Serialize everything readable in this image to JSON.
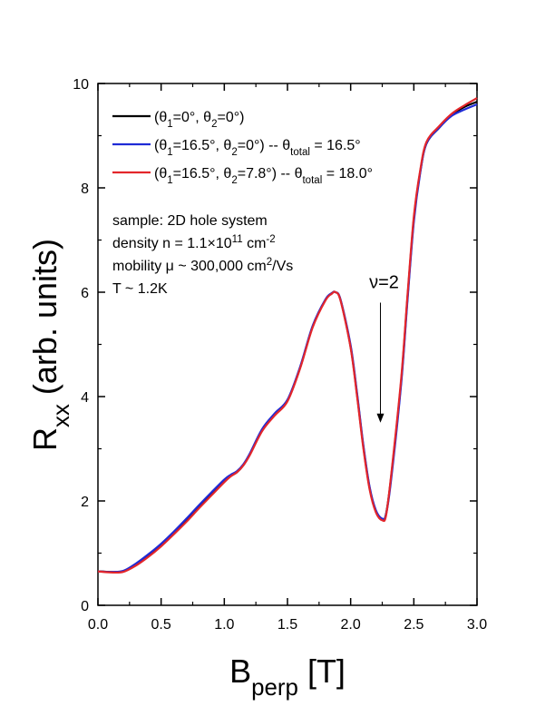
{
  "chart_data": {
    "type": "line",
    "xlabel": {
      "main": "B",
      "sub": "perp",
      "rest": " [T]"
    },
    "ylabel": {
      "main": "R",
      "sub": "xx",
      "rest": " (arb. units)"
    },
    "xlim": [
      0.0,
      3.0
    ],
    "ylim": [
      0,
      10
    ],
    "xticks": [
      "0.0",
      "0.5",
      "1.0",
      "1.5",
      "2.0",
      "2.5",
      "3.0"
    ],
    "yticks": [
      "0",
      "2",
      "4",
      "6",
      "8",
      "10"
    ],
    "grid": false,
    "legend_position": "top-left",
    "series": [
      {
        "color": "#000000",
        "label": "(θ1=0°, θ2=0°)",
        "x": [
          0.0,
          0.1,
          0.2,
          0.3,
          0.4,
          0.5,
          0.6,
          0.7,
          0.8,
          0.9,
          1.0,
          1.05,
          1.1,
          1.15,
          1.2,
          1.3,
          1.4,
          1.5,
          1.6,
          1.7,
          1.8,
          1.85,
          1.88,
          1.92,
          2.0,
          2.05,
          2.1,
          2.15,
          2.2,
          2.25,
          2.28,
          2.32,
          2.4,
          2.45,
          2.5,
          2.55,
          2.6,
          2.7,
          2.8,
          2.9,
          3.0
        ],
        "y": [
          0.65,
          0.64,
          0.65,
          0.78,
          0.95,
          1.15,
          1.38,
          1.62,
          1.88,
          2.13,
          2.38,
          2.48,
          2.55,
          2.68,
          2.88,
          3.35,
          3.65,
          3.92,
          4.55,
          5.35,
          5.85,
          5.98,
          6.0,
          5.85,
          4.95,
          4.05,
          3.05,
          2.25,
          1.8,
          1.65,
          1.75,
          2.45,
          4.3,
          5.9,
          7.4,
          8.3,
          8.85,
          9.15,
          9.4,
          9.55,
          9.65
        ]
      },
      {
        "color": "#1f2bd6",
        "label": "(θ1=16.5°, θ2=0°) -- θtotal = 16.5°",
        "x": [
          0.0,
          0.1,
          0.2,
          0.3,
          0.4,
          0.5,
          0.6,
          0.7,
          0.8,
          0.9,
          1.0,
          1.05,
          1.1,
          1.15,
          1.2,
          1.3,
          1.4,
          1.5,
          1.6,
          1.7,
          1.8,
          1.85,
          1.88,
          1.92,
          2.0,
          2.05,
          2.1,
          2.15,
          2.2,
          2.25,
          2.28,
          2.32,
          2.4,
          2.45,
          2.5,
          2.55,
          2.6,
          2.7,
          2.8,
          2.9,
          3.0
        ],
        "y": [
          0.65,
          0.64,
          0.66,
          0.8,
          0.98,
          1.18,
          1.41,
          1.66,
          1.92,
          2.17,
          2.41,
          2.5,
          2.57,
          2.7,
          2.9,
          3.38,
          3.68,
          3.94,
          4.57,
          5.36,
          5.86,
          5.98,
          6.0,
          5.86,
          4.98,
          4.08,
          3.08,
          2.27,
          1.82,
          1.66,
          1.74,
          2.4,
          4.25,
          5.85,
          7.35,
          8.28,
          8.85,
          9.15,
          9.38,
          9.5,
          9.6
        ]
      },
      {
        "color": "#e3262b",
        "label": "(θ1=16.5°, θ2=7.8°) -- θtotal = 18.0°",
        "x": [
          0.0,
          0.1,
          0.2,
          0.3,
          0.4,
          0.5,
          0.6,
          0.7,
          0.8,
          0.9,
          1.0,
          1.05,
          1.1,
          1.15,
          1.2,
          1.3,
          1.4,
          1.5,
          1.6,
          1.7,
          1.8,
          1.85,
          1.88,
          1.92,
          2.0,
          2.05,
          2.1,
          2.15,
          2.2,
          2.25,
          2.28,
          2.32,
          2.4,
          2.45,
          2.5,
          2.55,
          2.6,
          2.7,
          2.8,
          2.9,
          3.0
        ],
        "y": [
          0.65,
          0.63,
          0.64,
          0.76,
          0.93,
          1.13,
          1.36,
          1.6,
          1.86,
          2.11,
          2.36,
          2.47,
          2.55,
          2.68,
          2.87,
          3.34,
          3.64,
          3.91,
          4.54,
          5.33,
          5.84,
          5.97,
          6.0,
          5.84,
          4.93,
          4.02,
          3.02,
          2.22,
          1.78,
          1.63,
          1.72,
          2.48,
          4.35,
          5.95,
          7.45,
          8.33,
          8.88,
          9.18,
          9.42,
          9.58,
          9.72
        ]
      }
    ],
    "legend": [
      {
        "color": "#000000",
        "parts": [
          [
            "(θ",
            ""
          ],
          [
            "1",
            "sub"
          ],
          [
            "=0°, θ",
            ""
          ],
          [
            "2",
            "sub"
          ],
          [
            "=0°)",
            ""
          ]
        ]
      },
      {
        "color": "#1f2bd6",
        "parts": [
          [
            "(θ",
            ""
          ],
          [
            "1",
            "sub"
          ],
          [
            "=16.5°, θ",
            ""
          ],
          [
            "2",
            "sub"
          ],
          [
            "=0°) -- θ",
            ""
          ],
          [
            "total",
            "sub"
          ],
          [
            " = 16.5°",
            ""
          ]
        ]
      },
      {
        "color": "#e3262b",
        "parts": [
          [
            "(θ",
            ""
          ],
          [
            "1",
            "sub"
          ],
          [
            "=16.5°, θ",
            ""
          ],
          [
            "2",
            "sub"
          ],
          [
            "=7.8°) -- θ",
            ""
          ],
          [
            "total",
            "sub"
          ],
          [
            " = 18.0°",
            ""
          ]
        ]
      }
    ],
    "notes": [
      {
        "parts": [
          [
            "sample: 2D hole system",
            ""
          ]
        ]
      },
      {
        "parts": [
          [
            "density n = 1.1×10",
            ""
          ],
          [
            "11",
            "sup"
          ],
          [
            " cm",
            ""
          ],
          [
            "-2",
            "sup"
          ]
        ]
      },
      {
        "parts": [
          [
            "mobility μ ~ 300,000 cm",
            ""
          ],
          [
            "2",
            "sup"
          ],
          [
            "/Vs",
            ""
          ]
        ]
      },
      {
        "parts": [
          [
            "T ~ 1.2K",
            ""
          ]
        ]
      }
    ],
    "annotation": {
      "text": "ν=2",
      "arrow_x": 2.25,
      "arrow_y_start": 5.8,
      "arrow_y_end": 3.5
    }
  }
}
